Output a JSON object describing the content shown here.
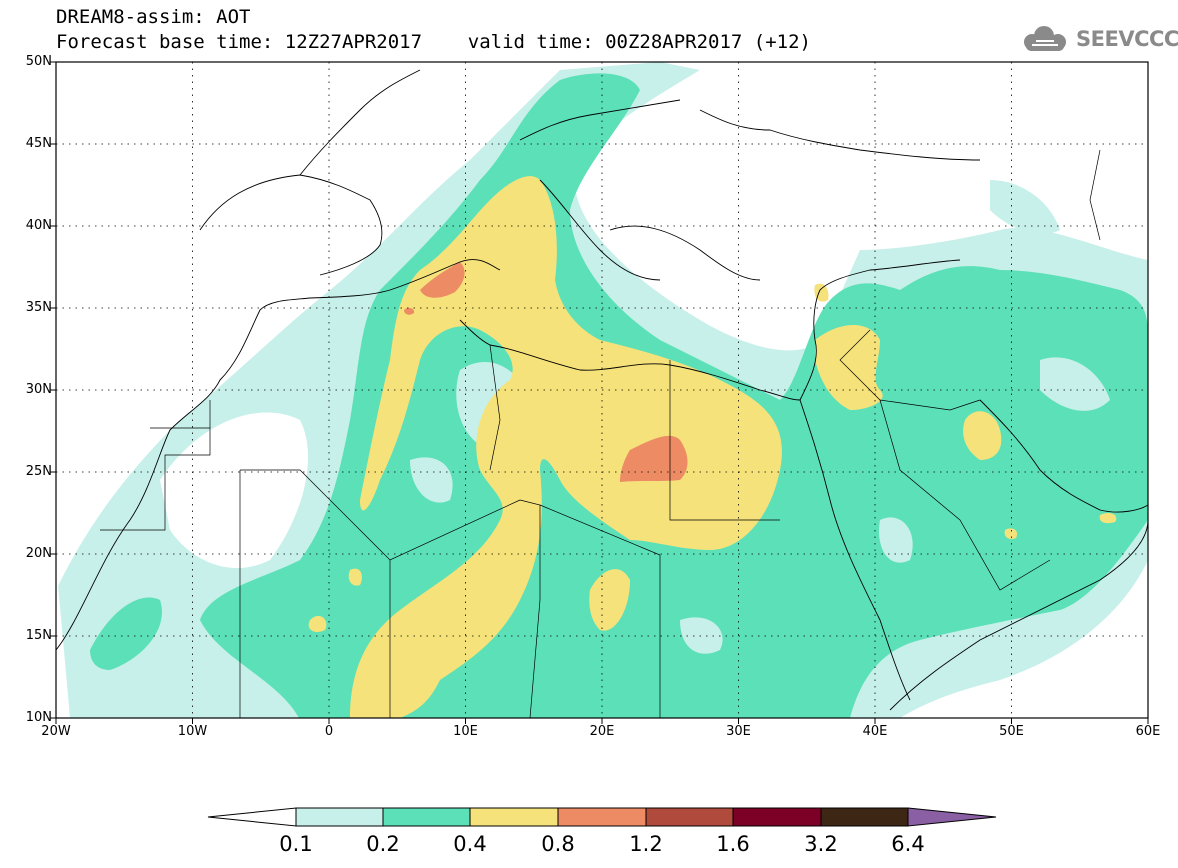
{
  "title": {
    "line1": "DREAM8-assim: AOT",
    "line2": "Forecast base time: 12Z27APR2017    valid time: 00Z28APR2017 (+12)"
  },
  "logo": {
    "text": "SEEVCCC",
    "icon": "cloud-icon",
    "color": "#8a8a8a"
  },
  "axes": {
    "lat_labels": [
      "50N",
      "45N",
      "40N",
      "35N",
      "30N",
      "25N",
      "20N",
      "15N",
      "10N"
    ],
    "lon_labels": [
      "20W",
      "10W",
      "0",
      "10E",
      "20E",
      "30E",
      "40E",
      "50E",
      "60E"
    ],
    "lon_range": [
      -20,
      60
    ],
    "lat_range": [
      10,
      50
    ],
    "grid": true
  },
  "colorbar": {
    "labels": [
      "0.1",
      "0.2",
      "0.4",
      "0.8",
      "1.2",
      "1.6",
      "3.2",
      "6.4"
    ],
    "colors": [
      "#ffffff",
      "#c7f0ea",
      "#5ce0b8",
      "#f6e27a",
      "#ec8b64",
      "#b04a3c",
      "#7d0026",
      "#3d2614",
      "#8a5fa3"
    ]
  }
}
